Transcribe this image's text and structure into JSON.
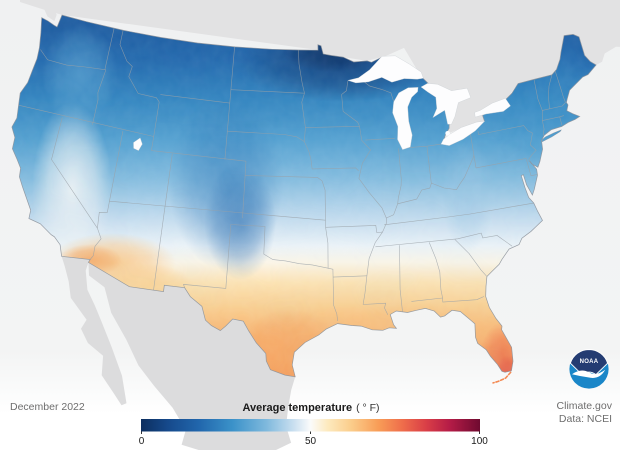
{
  "map": {
    "period_label": "December 2022",
    "credit_line1": "Climate.gov",
    "credit_line2": "Data: NCEI",
    "noaa_text": "NOAA",
    "colors": {
      "ocean_top": "#f0f1f2",
      "ocean_mid": "#f3f4f4",
      "ocean_bottom": "#ffffff",
      "canada_land": "#e2e2e3",
      "mexico_land": "#dcdcdd",
      "state_border": "#9aa1a8",
      "us_outline": "#8d949c",
      "lake_fill": "#fdfdfe",
      "lake_stroke": "#c8cdd2",
      "noaa_navy": "#243c72",
      "noaa_blue": "#1a86c8",
      "text_gray": "#6e6e6e",
      "text_dark": "#1a1a1a"
    }
  },
  "legend": {
    "title": "Average temperature",
    "unit": "( ° F)",
    "tick_labels": [
      "0",
      "50",
      "100"
    ],
    "min": 0,
    "max": 100,
    "colormap_stops": [
      [
        0.0,
        "#0c2e5f"
      ],
      [
        0.08,
        "#164a8c"
      ],
      [
        0.17,
        "#2166ac"
      ],
      [
        0.27,
        "#3b92c9"
      ],
      [
        0.37,
        "#7fb9dd"
      ],
      [
        0.45,
        "#c9dff0"
      ],
      [
        0.5,
        "#fbfbfb"
      ],
      [
        0.55,
        "#fdeabf"
      ],
      [
        0.62,
        "#fbcd8b"
      ],
      [
        0.7,
        "#f89d57"
      ],
      [
        0.77,
        "#ef6e4b"
      ],
      [
        0.84,
        "#da3f47"
      ],
      [
        0.91,
        "#b51c47"
      ],
      [
        1.0,
        "#6f0a30"
      ]
    ]
  },
  "chart_data": {
    "type": "heatmap",
    "title": "Average temperature ( ° F)",
    "region": "Contiguous United States",
    "period": "December 2022",
    "source": "Data: NCEI",
    "publisher": "Climate.gov",
    "colorbar_range": [
      0,
      100
    ],
    "colorbar_ticks": [
      0,
      50,
      100
    ],
    "pattern": "Coldest air (dark navy, near 0-15 F) over northern Minnesota, North Dakota and Montana; blues (20-35 F) across the northern tier, Rockies, Midwest and Northeast; a near-50 F white band across the mid-South and coastal California; oranges (55-65 F) over southern Arizona, southern California, Texas and the Gulf Coast; warmest (70 F plus, orange-red) in south Texas and peninsular south Florida",
    "estimated_values_F": {
      "northern_minnesota": 5,
      "montana_north_dakota": 14,
      "great_lakes_region": 25,
      "central_plains": 32,
      "mid_atlantic": 40,
      "oklahoma_arkansas_band": 48,
      "southern_california_coast": 55,
      "southern_arizona": 56,
      "gulf_coast": 60,
      "south_texas": 66,
      "south_florida": 73
    }
  }
}
